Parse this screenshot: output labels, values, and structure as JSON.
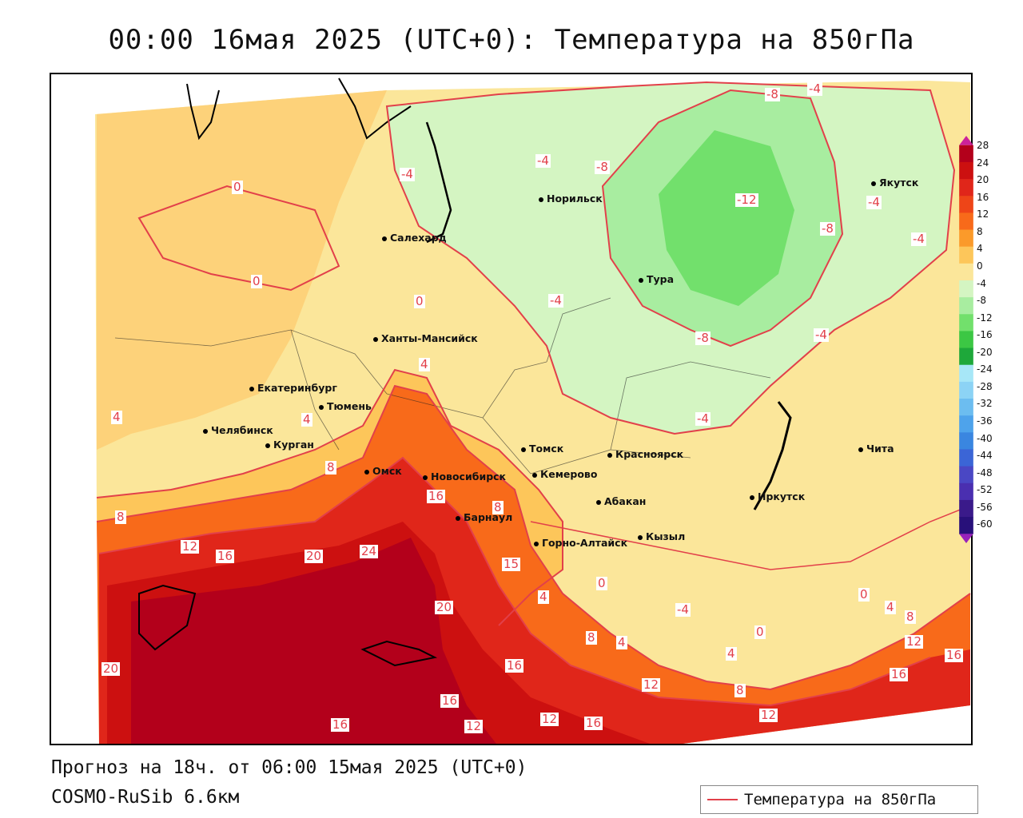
{
  "title": "00:00 16мая 2025 (UTC+0): Температура на 850гПа",
  "footer": {
    "forecast": "Прогноз на 18ч. от 06:00 15мая 2025 (UTC+0)",
    "model": "COSMO-RuSib 6.6км"
  },
  "legend": {
    "label": "Температура на 850гПа",
    "line_color": "#e2404a"
  },
  "cities": [
    {
      "name": "Норильск"
    },
    {
      "name": "Якутск"
    },
    {
      "name": "Салехард"
    },
    {
      "name": "Тура"
    },
    {
      "name": "Ханты-Мансийск"
    },
    {
      "name": "Екатеринбург"
    },
    {
      "name": "Тюмень"
    },
    {
      "name": "Челябинск"
    },
    {
      "name": "Курган"
    },
    {
      "name": "Омск"
    },
    {
      "name": "Новосибирск"
    },
    {
      "name": "Томск"
    },
    {
      "name": "Кемерово"
    },
    {
      "name": "Красноярск"
    },
    {
      "name": "Абакан"
    },
    {
      "name": "Барнаул"
    },
    {
      "name": "Горно-Алтайск"
    },
    {
      "name": "Кызыл"
    },
    {
      "name": "Иркутск"
    },
    {
      "name": "Чита"
    }
  ],
  "contour_labels": [
    "-8",
    "-4",
    "-4",
    "-8",
    "-4",
    "-12",
    "-4",
    "-8",
    "-4",
    "0",
    "0",
    "0",
    "-4",
    "-8",
    "-4",
    "4",
    "-4",
    "4",
    "4",
    "8",
    "8",
    "12",
    "16",
    "20",
    "24",
    "16",
    "8",
    "15",
    "4",
    "0",
    "-4",
    "0",
    "0",
    "4",
    "8",
    "8",
    "4",
    "4",
    "12",
    "16",
    "16",
    "20",
    "16",
    "12",
    "16",
    "20",
    "16",
    "12",
    "12",
    "16",
    "8",
    "12"
  ],
  "color_scale": {
    "ticks": [
      "28",
      "24",
      "20",
      "16",
      "12",
      "8",
      "4",
      "0",
      "-4",
      "-8",
      "-12",
      "-16",
      "-20",
      "-24",
      "-28",
      "-32",
      "-36",
      "-40",
      "-44",
      "-48",
      "-52",
      "-56",
      "-60"
    ],
    "colors": [
      "#b3001b",
      "#cc1010",
      "#e0261a",
      "#ee4518",
      "#f86a1a",
      "#fb9a2a",
      "#fdc65a",
      "#fbe69a",
      "#d4f5c2",
      "#a8eda0",
      "#72e06c",
      "#3cc744",
      "#1ea83a",
      "#a7e7f7",
      "#8cd3f5",
      "#6cbdf0",
      "#4ea3eb",
      "#3a86e0",
      "#3b65d6",
      "#4a47c4",
      "#4a2fb0",
      "#3a1a8a",
      "#28107a"
    ],
    "max_arrow": "#cc2299",
    "min_arrow": "#9922bb"
  }
}
